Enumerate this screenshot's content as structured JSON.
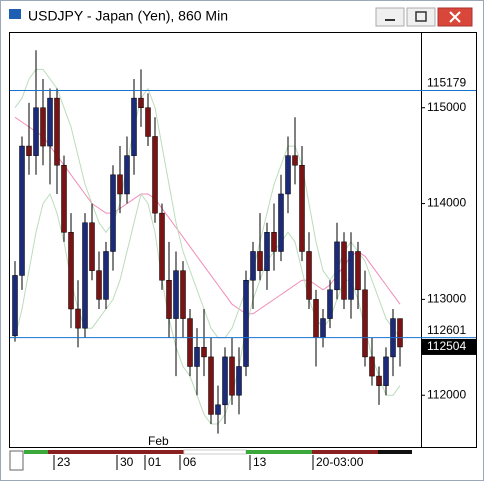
{
  "window": {
    "title": "USDJPY - Japan (Yen), 860 Min"
  },
  "chart_data": {
    "type": "candlestick",
    "categories": [
      null,
      null,
      null,
      null,
      null,
      null,
      "23",
      null,
      null,
      null,
      null,
      null,
      null,
      null,
      null,
      "30",
      null,
      null,
      null,
      "01",
      null,
      null,
      null,
      null,
      "06",
      null,
      null,
      null,
      null,
      null,
      null,
      null,
      null,
      null,
      "13",
      null,
      null,
      null,
      null,
      null,
      null,
      null,
      null,
      "20-03:00",
      null,
      null,
      null,
      null,
      null,
      null,
      null,
      null,
      null,
      null,
      null,
      null
    ],
    "annotations": [
      "Feb"
    ],
    "open": [
      112620,
      113250,
      114600,
      114500,
      115000,
      114600,
      115100,
      114400,
      113700,
      112900,
      112700,
      113800,
      113300,
      113000,
      113500,
      114300,
      114100,
      114500,
      115100,
      115000,
      114700,
      113900,
      113200,
      112800,
      113300,
      112800,
      112300,
      112500,
      112400,
      111800,
      111900,
      112400,
      112000,
      112300,
      113200,
      113500,
      113300,
      113700,
      113500,
      114100,
      114500,
      114400,
      113500,
      113000,
      112600,
      112800,
      113100,
      113600,
      113000,
      113500,
      113100,
      112400,
      112200,
      112100,
      112400,
      112800
    ],
    "high": [
      113400,
      114700,
      115050,
      115600,
      115300,
      115200,
      115200,
      114500,
      113900,
      113200,
      113900,
      114000,
      113500,
      113600,
      114400,
      114600,
      114700,
      115300,
      115400,
      115150,
      114900,
      114000,
      113600,
      113500,
      113400,
      112900,
      112700,
      112900,
      112600,
      112100,
      112500,
      112600,
      112500,
      113300,
      113600,
      113900,
      113800,
      114000,
      114300,
      114700,
      114900,
      114600,
      113700,
      113100,
      112900,
      113200,
      113800,
      113700,
      113700,
      113600,
      113300,
      112600,
      112300,
      112500,
      112900,
      112800
    ],
    "low": [
      112560,
      113100,
      114300,
      114300,
      114400,
      114200,
      114100,
      113600,
      112700,
      112500,
      112600,
      113200,
      112900,
      112900,
      113300,
      113900,
      114000,
      114300,
      114800,
      114600,
      113800,
      113100,
      112600,
      112200,
      112600,
      112200,
      112000,
      112200,
      111700,
      111600,
      111700,
      111900,
      111800,
      112200,
      112900,
      113200,
      113100,
      113300,
      113400,
      113900,
      114200,
      113400,
      112900,
      112300,
      112500,
      112700,
      113000,
      112900,
      112800,
      112900,
      112300,
      112100,
      111900,
      112000,
      112200,
      112300
    ],
    "close": [
      113250,
      114600,
      114500,
      115000,
      114600,
      115100,
      114400,
      113700,
      112900,
      112700,
      113800,
      113300,
      113000,
      113500,
      114300,
      114100,
      114500,
      115100,
      115000,
      114700,
      113900,
      113200,
      112800,
      113300,
      112800,
      112300,
      112500,
      112400,
      111800,
      111900,
      112400,
      112000,
      112300,
      113200,
      113500,
      113300,
      113700,
      113500,
      114100,
      114500,
      114400,
      113500,
      113000,
      112600,
      112800,
      113100,
      113600,
      113000,
      113500,
      113100,
      112400,
      112200,
      112100,
      112400,
      112800,
      112504
    ],
    "up_color": "#1c2a7a",
    "down_color": "#7a1414",
    "overlays": [
      {
        "color": "#f28cb8",
        "values": [
          114900,
          114850,
          114800,
          114750,
          114700,
          114600,
          114500,
          114400,
          114300,
          114200,
          114100,
          114000,
          113950,
          113900,
          113900,
          113950,
          114000,
          114050,
          114100,
          114100,
          114050,
          113950,
          113850,
          113750,
          113650,
          113550,
          113450,
          113350,
          113250,
          113150,
          113050,
          112950,
          112900,
          112850,
          112850,
          112900,
          112950,
          113000,
          113050,
          113100,
          113150,
          113200,
          113200,
          113150,
          113100,
          113150,
          113250,
          113350,
          113450,
          113500,
          113450,
          113350,
          113250,
          113150,
          113050,
          112950
        ]
      },
      {
        "color": "#bcdcbc",
        "values": [
          115000,
          115100,
          115300,
          115400,
          115400,
          115300,
          115200,
          115000,
          114800,
          114500,
          114200,
          114000,
          113800,
          113700,
          113800,
          114000,
          114400,
          114800,
          115100,
          115200,
          115000,
          114600,
          114200,
          113800,
          113500,
          113300,
          113100,
          112900,
          112700,
          112600,
          112600,
          112700,
          112900,
          113100,
          113300,
          113600,
          113900,
          114200,
          114400,
          114600,
          114600,
          114400,
          114000,
          113600,
          113300,
          113200,
          113300,
          113500,
          113600,
          113500,
          113400,
          113200,
          113000,
          112800,
          112700,
          112600
        ]
      },
      {
        "color": "#bcdcbc",
        "values": [
          112600,
          112900,
          113300,
          113700,
          114000,
          114100,
          113900,
          113600,
          113200,
          112900,
          112700,
          112700,
          112800,
          112900,
          113000,
          113200,
          113500,
          113800,
          114100,
          114000,
          113700,
          113200,
          112800,
          112500,
          112300,
          112200,
          112000,
          111800,
          111700,
          111700,
          111800,
          112000,
          112300,
          112700,
          113000,
          113200,
          113400,
          113500,
          113600,
          113700,
          113600,
          113300,
          113000,
          112800,
          112700,
          112800,
          113000,
          113200,
          113200,
          113000,
          112700,
          112400,
          112200,
          112000,
          112000,
          112100
        ]
      }
    ],
    "ylim": [
      111460,
      115790
    ],
    "yticks": [
      112000,
      113000,
      114000,
      115000
    ],
    "price_lines": [
      {
        "value": 115179,
        "color": "#1a73d0"
      },
      {
        "value": 112601,
        "color": "#1a73d0"
      }
    ],
    "last_price": 112504
  }
}
